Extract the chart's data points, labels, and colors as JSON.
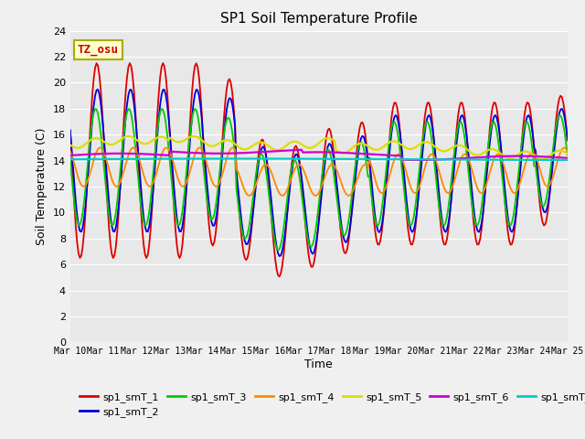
{
  "title": "SP1 Soil Temperature Profile",
  "xlabel": "Time",
  "ylabel": "Soil Temperature (C)",
  "ylim": [
    0,
    24
  ],
  "yticks": [
    0,
    2,
    4,
    6,
    8,
    10,
    12,
    14,
    16,
    18,
    20,
    22,
    24
  ],
  "xtick_labels": [
    "Mar 10",
    "Mar 11",
    "Mar 12",
    "Mar 13",
    "Mar 14",
    "Mar 15",
    "Mar 16",
    "Mar 17",
    "Mar 18",
    "Mar 19",
    "Mar 20",
    "Mar 21",
    "Mar 22",
    "Mar 23",
    "Mar 24",
    "Mar 25"
  ],
  "annotation": "TZ_osu",
  "annotation_color": "#cc0000",
  "annotation_bg": "#ffffcc",
  "annotation_border": "#aaaa00",
  "series_colors": {
    "sp1_smT_1": "#dd0000",
    "sp1_smT_2": "#0000dd",
    "sp1_smT_3": "#00cc00",
    "sp1_smT_4": "#ff8800",
    "sp1_smT_5": "#dddd00",
    "sp1_smT_6": "#cc00cc",
    "sp1_smT_7": "#00cccc"
  },
  "fig_bg": "#f0f0f0",
  "plot_bg": "#e8e8e8"
}
